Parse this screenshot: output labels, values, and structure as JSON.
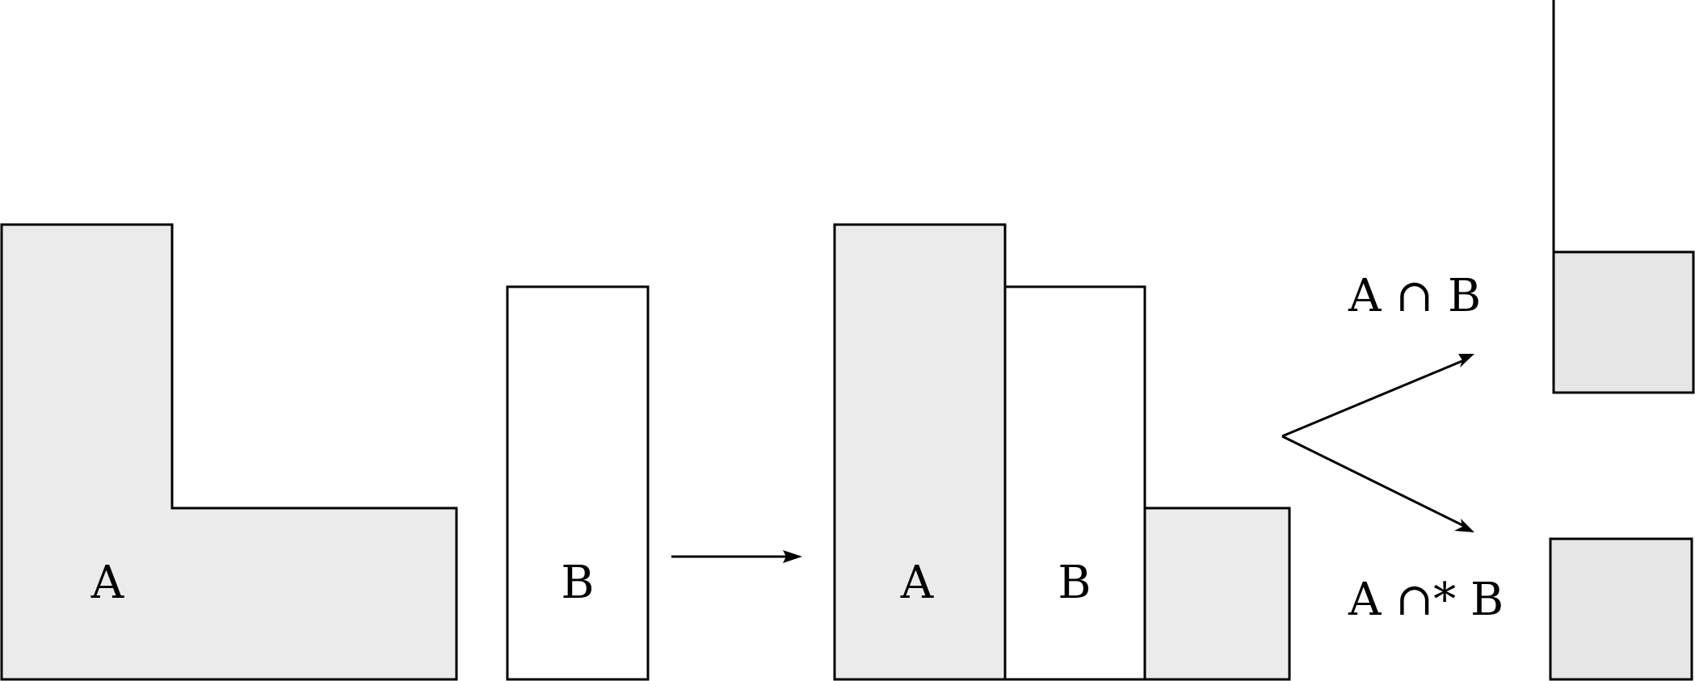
{
  "diagram": {
    "operand_a_label": "A",
    "operand_b_label": "B",
    "combined_a_label": "A",
    "combined_b_label": "B",
    "intersection_label": "A ∩ B",
    "regularized_intersection_label": "A ∩* B",
    "shaded_fill": "#ebebeb",
    "stroke_color": "#000000"
  }
}
